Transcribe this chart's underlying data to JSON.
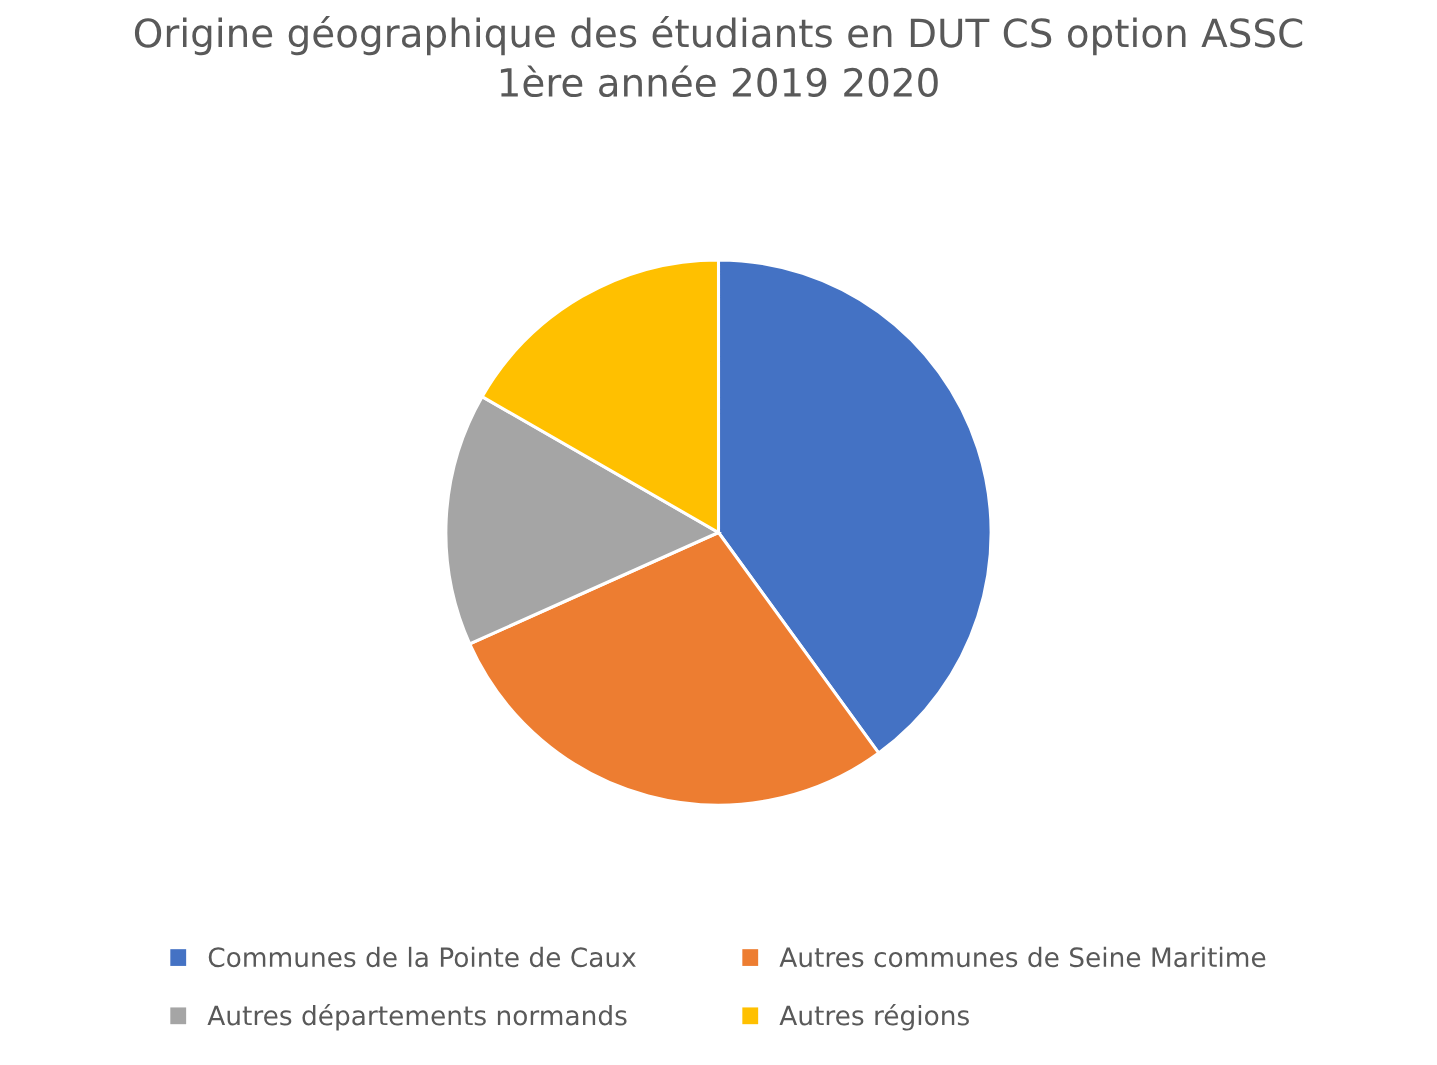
{
  "chart_data": {
    "type": "pie",
    "title": "Origine géographique des étudiants en DUT CS option ASSC\n1ère année 2019 2020",
    "categories": [
      "Communes de la Pointe de Caux",
      "Autres communes de Seine Maritime",
      "Autres départements normands",
      "Autres régions"
    ],
    "values": [
      40,
      28.3,
      15,
      16.7
    ],
    "colors": [
      "#4472c4",
      "#ed7d31",
      "#a5a5a5",
      "#ffc000"
    ],
    "legend": "bottom"
  }
}
